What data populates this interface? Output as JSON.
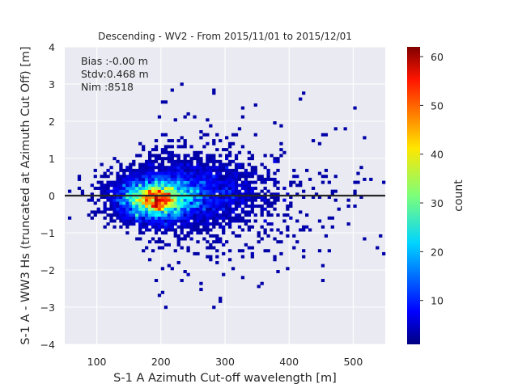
{
  "chart_data": {
    "type": "heatmap",
    "title": "Descending - WV2 - From 2015/11/01 to 2015/12/01",
    "xlabel": "S-1 A Azimuth Cut-off wavelength [m]",
    "ylabel": "S-1 A - WW3 Hs (truncated at Azimuth Cut Off) [m]",
    "xlim": [
      50,
      550
    ],
    "ylim": [
      -4,
      4
    ],
    "xticks": [
      100,
      200,
      300,
      400,
      500
    ],
    "yticks": [
      -4,
      -3,
      -2,
      -1,
      0,
      1,
      2,
      3,
      4
    ],
    "grid": true,
    "reference_line_y": 0,
    "stats": {
      "bias": "Bias :-0.00 m",
      "stdv": "Stdv:0.468 m",
      "nim": "Nim :8518"
    },
    "colorbar": {
      "label": "count",
      "min": 1,
      "max": 62,
      "ticks": [
        10,
        20,
        30,
        40,
        50,
        60
      ],
      "colormap": "jet"
    },
    "density_peak": {
      "x": 190,
      "y": -0.1,
      "count": 62
    },
    "colors": {
      "background": "#eaeaf2",
      "grid": "#ffffff",
      "zero_line": "#262626"
    }
  }
}
